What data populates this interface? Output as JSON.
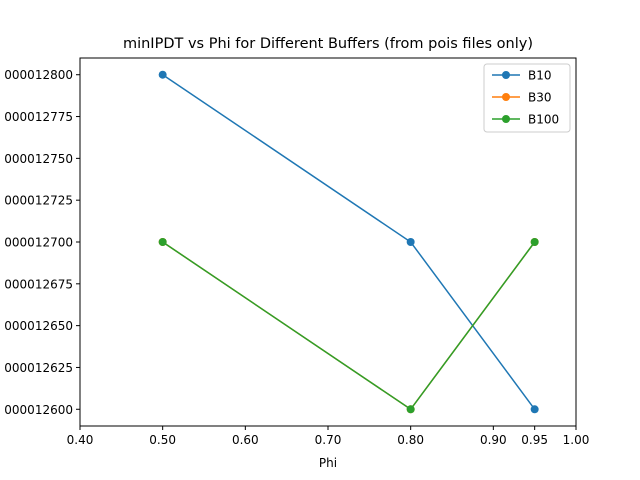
{
  "chart_data": {
    "type": "line",
    "title": "minIPDT vs Phi for Different Buffers (from pois files only)",
    "xlabel": "Phi",
    "ylabel": "",
    "xlim": [
      0.4,
      1.0
    ],
    "ylim": [
      0.00012659,
      0.00012681
    ],
    "x_ticks": [
      0.4,
      0.5,
      0.6,
      0.7,
      0.8,
      0.9,
      0.95,
      1.0
    ],
    "x_tick_labels": [
      "0.40",
      "0.50",
      "0.60",
      "0.70",
      "0.80",
      "0.90",
      "0.95",
      "1.00"
    ],
    "y_ticks": [
      0.0001266,
      0.000126625,
      0.00012665,
      0.000126675,
      0.0001267,
      0.000126725,
      0.00012675,
      0.000126775,
      0.0001268
    ],
    "y_tick_labels": [
      "000012600",
      "000012625",
      "000012650",
      "000012675",
      "000012700",
      "000012725",
      "000012750",
      "000012775",
      "000012800"
    ],
    "grid": false,
    "legend_position": "top-right",
    "series": [
      {
        "name": "B10",
        "color": "#1f77b4",
        "x": [
          0.5,
          0.8,
          0.95
        ],
        "y": [
          0.0001268,
          0.0001267,
          0.0001266
        ]
      },
      {
        "name": "B30",
        "color": "#ff7f0e",
        "x": [
          0.5,
          0.8,
          0.95
        ],
        "y": [
          0.0001267,
          0.0001266,
          0.0001267
        ]
      },
      {
        "name": "B100",
        "color": "#2ca02c",
        "x": [
          0.5,
          0.8,
          0.95
        ],
        "y": [
          0.0001267,
          0.0001266,
          0.0001267
        ]
      }
    ]
  }
}
